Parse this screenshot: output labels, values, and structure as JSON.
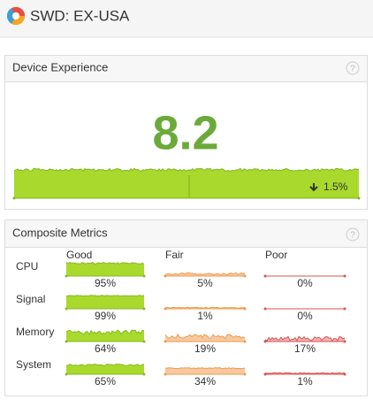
{
  "header": {
    "title": "SWD: EX-USA"
  },
  "device_experience": {
    "title": "Device Experience",
    "help": "?",
    "score": "8.2",
    "change": "1.5%"
  },
  "composite_metrics": {
    "title": "Composite Metrics",
    "help": "?",
    "columns": [
      "Good",
      "Fair",
      "Poor"
    ],
    "rows": [
      {
        "label": "CPU",
        "values": [
          "95%",
          "5%",
          "0%"
        ]
      },
      {
        "label": "Signal",
        "values": [
          "99%",
          "1%",
          "0%"
        ]
      },
      {
        "label": "Memory",
        "values": [
          "64%",
          "19%",
          "17%"
        ]
      },
      {
        "label": "System",
        "values": [
          "65%",
          "34%",
          "1%"
        ]
      }
    ]
  }
}
